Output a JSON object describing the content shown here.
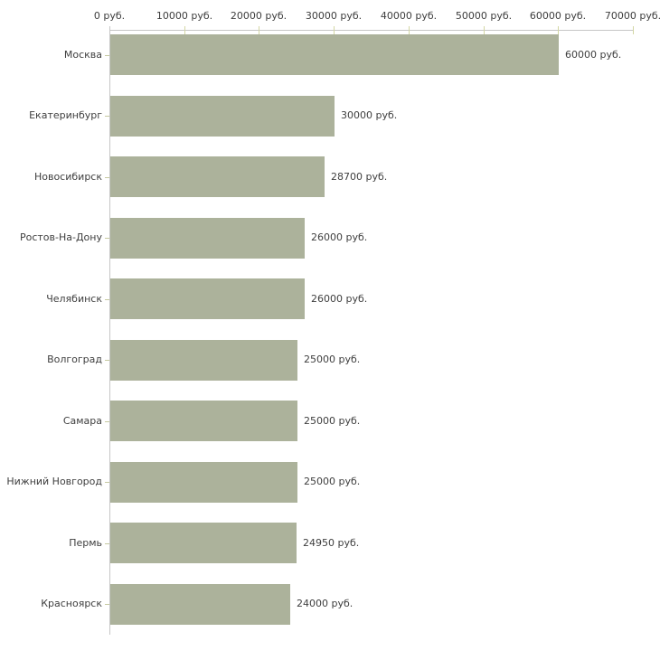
{
  "chart_data": {
    "type": "bar",
    "orientation": "horizontal",
    "categories": [
      "Москва",
      "Екатеринбург",
      "Новосибирск",
      "Ростов-На-Дону",
      "Челябинск",
      "Волгоград",
      "Самара",
      "Нижний Новгород",
      "Пермь",
      "Красноярск"
    ],
    "values": [
      60000,
      30000,
      28700,
      26000,
      26000,
      25000,
      25000,
      25000,
      24950,
      24000
    ],
    "value_labels": [
      "60000 руб.",
      "30000 руб.",
      "28700 руб.",
      "26000 руб.",
      "26000 руб.",
      "25000 руб.",
      "25000 руб.",
      "25000 руб.",
      "24950 руб.",
      "24000 руб."
    ],
    "x_axis": {
      "position": "top",
      "min": 0,
      "max": 70000,
      "ticks": [
        0,
        10000,
        20000,
        30000,
        40000,
        50000,
        60000,
        70000
      ],
      "tick_labels": [
        "0 руб.",
        "10000 руб.",
        "20000 руб.",
        "30000 руб.",
        "40000 руб.",
        "50000 руб.",
        "60000 руб.",
        "70000 руб."
      ]
    },
    "legend": "none",
    "grid": "off",
    "colors": {
      "bar": "#acb29b",
      "axis_line": "#c6c6c6",
      "interval_tick": "#d3d6a4",
      "category_tick": "#c6c9a0",
      "text": "#3e3e3e",
      "background": "#ffffff"
    }
  }
}
